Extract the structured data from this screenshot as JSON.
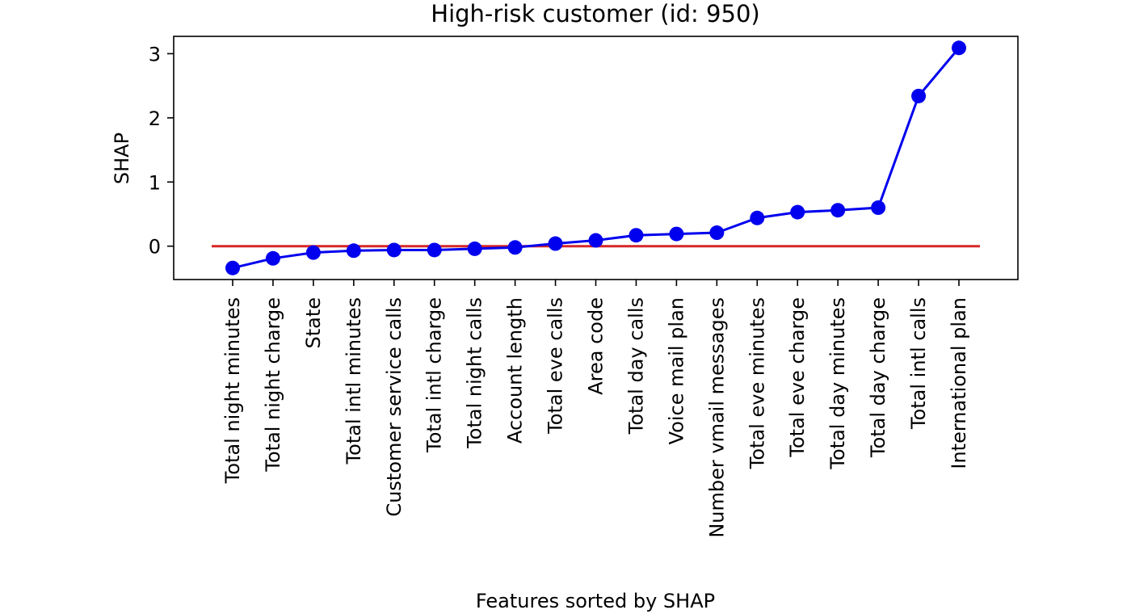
{
  "chart_data": {
    "type": "line",
    "title": "High-risk customer (id: 950)",
    "xlabel": "Features sorted by SHAP",
    "ylabel": "SHAP",
    "categories": [
      "Total night minutes",
      "Total night charge",
      "State",
      "Total intl minutes",
      "Customer service calls",
      "Total intl charge",
      "Total night calls",
      "Account length",
      "Total eve calls",
      "Area code",
      "Total day calls",
      "Voice mail plan",
      "Number vmail messages",
      "Total eve minutes",
      "Total eve charge",
      "Total day minutes",
      "Total day charge",
      "Total intl calls",
      "International plan"
    ],
    "series": [
      {
        "values": [
          -0.34,
          -0.19,
          -0.1,
          -0.07,
          -0.06,
          -0.06,
          -0.04,
          -0.02,
          0.04,
          0.09,
          0.17,
          0.19,
          0.21,
          0.44,
          0.53,
          0.56,
          0.6,
          2.34,
          3.09
        ],
        "color": "#0000ee"
      }
    ],
    "reference_line": {
      "y": 0,
      "color": "#d62728"
    },
    "yticks": [
      0,
      1,
      2,
      3
    ],
    "ylim": [
      -0.52,
      3.27
    ],
    "grid": false,
    "legend": "none"
  }
}
